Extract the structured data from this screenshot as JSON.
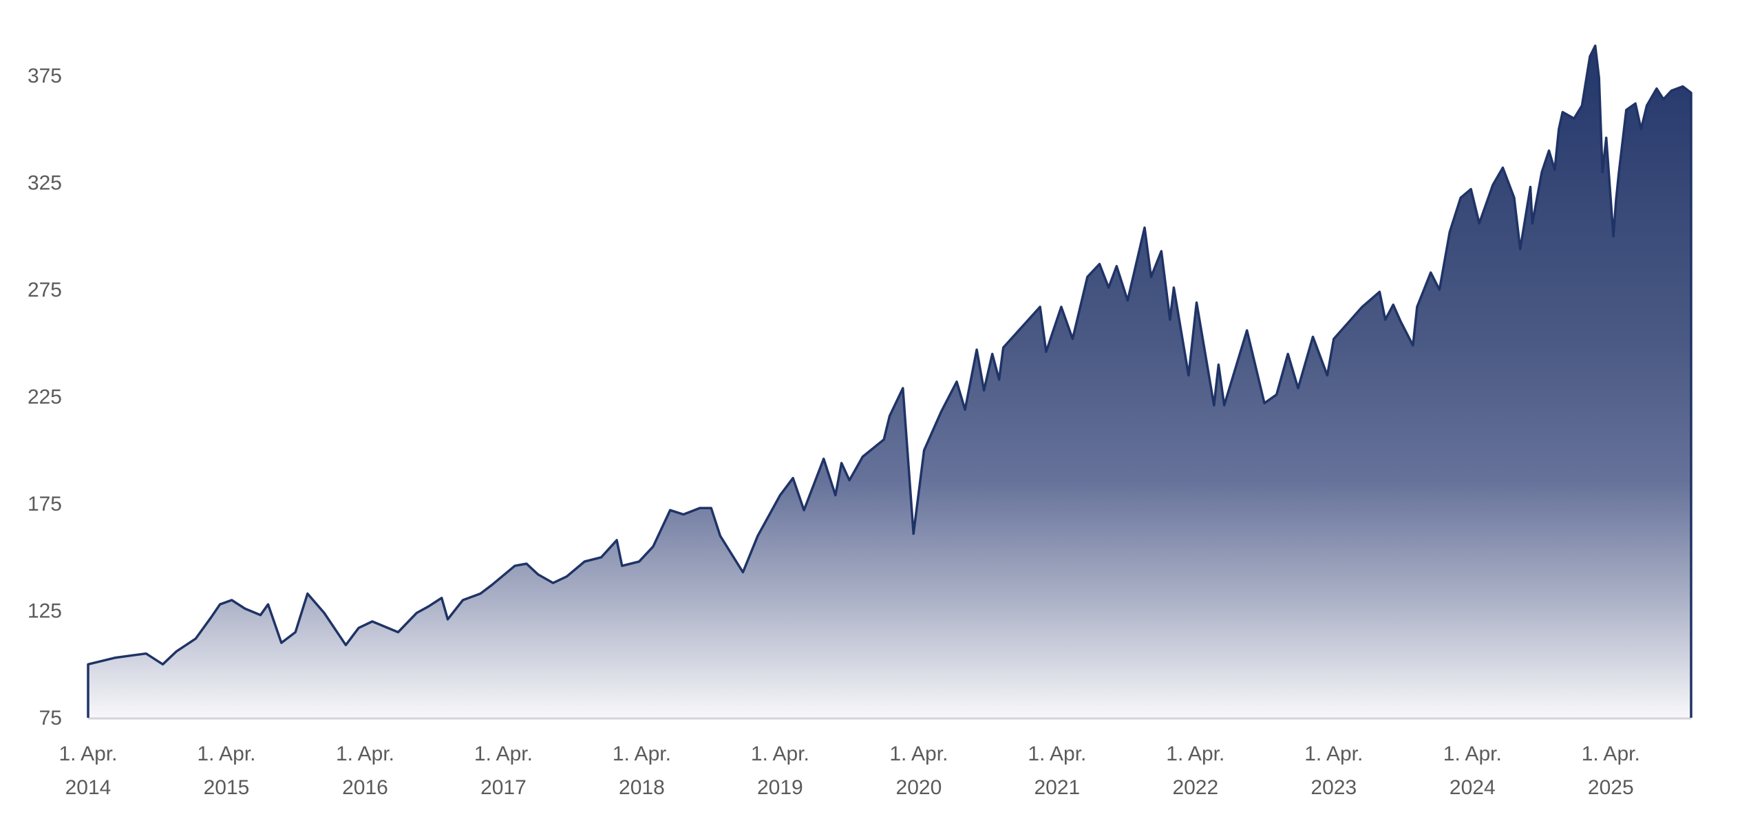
{
  "chart_data": {
    "type": "area",
    "title": "",
    "xlabel": "",
    "ylabel": "",
    "ylim": [
      75,
      400
    ],
    "xlim": [
      "2014-04-01",
      "2025-10-30"
    ],
    "y_ticks": [
      75,
      125,
      175,
      225,
      275,
      325,
      375
    ],
    "x_ticks": [
      {
        "date": "2014-04-01",
        "line1": "1. Apr.",
        "line2": "2014"
      },
      {
        "date": "2015-04-01",
        "line1": "1. Apr.",
        "line2": "2015"
      },
      {
        "date": "2016-04-01",
        "line1": "1. Apr.",
        "line2": "2016"
      },
      {
        "date": "2017-04-01",
        "line1": "1. Apr.",
        "line2": "2017"
      },
      {
        "date": "2018-04-01",
        "line1": "1. Apr.",
        "line2": "2018"
      },
      {
        "date": "2019-04-01",
        "line1": "1. Apr.",
        "line2": "2019"
      },
      {
        "date": "2020-04-01",
        "line1": "1. Apr.",
        "line2": "2020"
      },
      {
        "date": "2021-04-01",
        "line1": "1. Apr.",
        "line2": "2021"
      },
      {
        "date": "2022-04-01",
        "line1": "1. Apr.",
        "line2": "2022"
      },
      {
        "date": "2023-04-01",
        "line1": "1. Apr.",
        "line2": "2023"
      },
      {
        "date": "2024-04-01",
        "line1": "1. Apr.",
        "line2": "2024"
      },
      {
        "date": "2025-04-01",
        "line1": "1. Apr.",
        "line2": "2025"
      }
    ],
    "grid": false,
    "legend": "none",
    "colors": {
      "line": "#1f3366",
      "fill_top": "#23366a",
      "fill_bottom": "#f7f7fa",
      "axis": "#d4d4d8",
      "tick_text": "#5a5a5a"
    },
    "series": [
      {
        "points": [
          [
            "2014-04-01",
            100
          ],
          [
            "2014-06-10",
            103
          ],
          [
            "2014-07-20",
            104
          ],
          [
            "2014-09-01",
            105
          ],
          [
            "2014-10-15",
            100
          ],
          [
            "2014-11-20",
            106
          ],
          [
            "2015-01-10",
            112
          ],
          [
            "2015-02-20",
            122
          ],
          [
            "2015-03-15",
            128
          ],
          [
            "2015-04-15",
            130
          ],
          [
            "2015-05-20",
            126
          ],
          [
            "2015-06-30",
            123
          ],
          [
            "2015-07-20",
            128
          ],
          [
            "2015-08-24",
            110
          ],
          [
            "2015-09-30",
            115
          ],
          [
            "2015-11-01",
            133
          ],
          [
            "2015-12-15",
            124
          ],
          [
            "2016-02-10",
            109
          ],
          [
            "2016-03-15",
            117
          ],
          [
            "2016-04-20",
            120
          ],
          [
            "2016-06-27",
            115
          ],
          [
            "2016-08-15",
            124
          ],
          [
            "2016-09-15",
            127
          ],
          [
            "2016-10-20",
            131
          ],
          [
            "2016-11-05",
            121
          ],
          [
            "2016-12-15",
            130
          ],
          [
            "2017-01-30",
            133
          ],
          [
            "2017-03-01",
            137
          ],
          [
            "2017-05-01",
            146
          ],
          [
            "2017-06-01",
            147
          ],
          [
            "2017-07-01",
            142
          ],
          [
            "2017-08-10",
            138
          ],
          [
            "2017-09-15",
            141
          ],
          [
            "2017-11-01",
            148
          ],
          [
            "2017-12-15",
            150
          ],
          [
            "2018-01-25",
            158
          ],
          [
            "2018-02-08",
            146
          ],
          [
            "2018-03-25",
            148
          ],
          [
            "2018-05-01",
            155
          ],
          [
            "2018-06-15",
            172
          ],
          [
            "2018-07-20",
            170
          ],
          [
            "2018-09-01",
            173
          ],
          [
            "2018-10-01",
            173
          ],
          [
            "2018-10-25",
            160
          ],
          [
            "2018-12-24",
            143
          ],
          [
            "2019-02-01",
            160
          ],
          [
            "2019-04-01",
            179
          ],
          [
            "2019-05-05",
            187
          ],
          [
            "2019-06-03",
            172
          ],
          [
            "2019-07-25",
            196
          ],
          [
            "2019-08-25",
            179
          ],
          [
            "2019-09-10",
            194
          ],
          [
            "2019-10-01",
            186
          ],
          [
            "2019-11-05",
            197
          ],
          [
            "2019-12-31",
            205
          ],
          [
            "2020-01-15",
            216
          ],
          [
            "2020-02-19",
            229
          ],
          [
            "2020-03-18",
            161
          ],
          [
            "2020-04-15",
            200
          ],
          [
            "2020-05-30",
            218
          ],
          [
            "2020-07-10",
            232
          ],
          [
            "2020-08-01",
            219
          ],
          [
            "2020-09-01",
            247
          ],
          [
            "2020-09-20",
            228
          ],
          [
            "2020-10-12",
            245
          ],
          [
            "2020-10-30",
            233
          ],
          [
            "2020-11-10",
            248
          ],
          [
            "2020-12-31",
            258
          ],
          [
            "2021-02-15",
            267
          ],
          [
            "2021-03-03",
            246
          ],
          [
            "2021-04-12",
            267
          ],
          [
            "2021-05-12",
            252
          ],
          [
            "2021-06-20",
            281
          ],
          [
            "2021-07-22",
            287
          ],
          [
            "2021-08-15",
            276
          ],
          [
            "2021-09-05",
            286
          ],
          [
            "2021-10-04",
            270
          ],
          [
            "2021-11-18",
            304
          ],
          [
            "2021-12-05",
            281
          ],
          [
            "2022-01-01",
            293
          ],
          [
            "2022-01-24",
            261
          ],
          [
            "2022-02-03",
            276
          ],
          [
            "2022-03-14",
            235
          ],
          [
            "2022-04-04",
            269
          ],
          [
            "2022-05-20",
            221
          ],
          [
            "2022-06-01",
            240
          ],
          [
            "2022-06-16",
            221
          ],
          [
            "2022-08-15",
            256
          ],
          [
            "2022-09-30",
            222
          ],
          [
            "2022-11-01",
            226
          ],
          [
            "2022-12-01",
            245
          ],
          [
            "2022-12-28",
            229
          ],
          [
            "2023-02-05",
            253
          ],
          [
            "2023-03-15",
            235
          ],
          [
            "2023-04-01",
            252
          ],
          [
            "2023-06-15",
            267
          ],
          [
            "2023-07-31",
            274
          ],
          [
            "2023-08-15",
            261
          ],
          [
            "2023-09-05",
            268
          ],
          [
            "2023-09-25",
            260
          ],
          [
            "2023-10-27",
            249
          ],
          [
            "2023-11-07",
            267
          ],
          [
            "2023-12-13",
            283
          ],
          [
            "2024-01-05",
            275
          ],
          [
            "2024-02-01",
            302
          ],
          [
            "2024-03-01",
            318
          ],
          [
            "2024-03-28",
            322
          ],
          [
            "2024-04-19",
            306
          ],
          [
            "2024-05-25",
            324
          ],
          [
            "2024-06-20",
            332
          ],
          [
            "2024-07-20",
            318
          ],
          [
            "2024-08-05",
            294
          ],
          [
            "2024-09-01",
            323
          ],
          [
            "2024-09-06",
            306
          ],
          [
            "2024-10-01",
            330
          ],
          [
            "2024-10-20",
            340
          ],
          [
            "2024-11-04",
            331
          ],
          [
            "2024-11-15",
            350
          ],
          [
            "2024-11-25",
            358
          ],
          [
            "2024-12-25",
            355
          ],
          [
            "2025-01-15",
            361
          ],
          [
            "2025-02-05",
            384
          ],
          [
            "2025-02-19",
            389
          ],
          [
            "2025-03-01",
            374
          ],
          [
            "2025-03-10",
            330
          ],
          [
            "2025-03-20",
            346
          ],
          [
            "2025-04-08",
            300
          ],
          [
            "2025-04-15",
            317
          ],
          [
            "2025-04-22",
            329
          ],
          [
            "2025-05-12",
            359
          ],
          [
            "2025-06-05",
            362
          ],
          [
            "2025-06-20",
            350
          ],
          [
            "2025-07-05",
            361
          ],
          [
            "2025-07-31",
            369
          ],
          [
            "2025-08-18",
            364
          ],
          [
            "2025-09-08",
            368
          ],
          [
            "2025-10-08",
            370
          ],
          [
            "2025-10-30",
            367
          ]
        ]
      }
    ]
  }
}
